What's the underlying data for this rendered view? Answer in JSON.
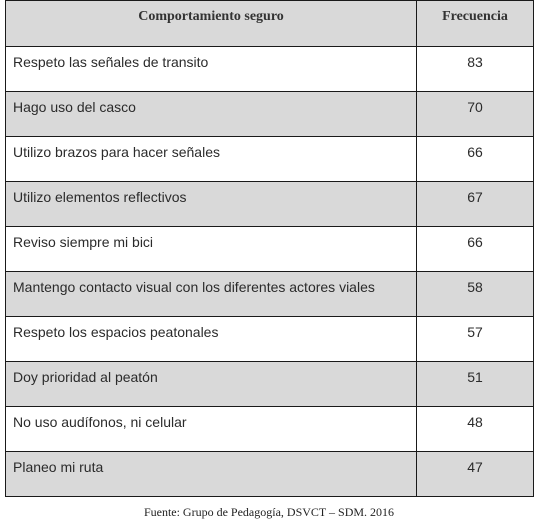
{
  "table": {
    "headers": [
      "Comportamiento seguro",
      "Frecuencia"
    ],
    "rows": [
      {
        "behavior": "Respeto las señales de transito",
        "frequency": "83"
      },
      {
        "behavior": "Hago uso del casco",
        "frequency": "70"
      },
      {
        "behavior": "Utilizo brazos para hacer señales",
        "frequency": "66"
      },
      {
        "behavior": "Utilizo elementos reflectivos",
        "frequency": "67"
      },
      {
        "behavior": "Reviso siempre mi bici",
        "frequency": "66"
      },
      {
        "behavior": "Mantengo contacto visual con los diferentes actores viales",
        "frequency": "58"
      },
      {
        "behavior": "Respeto los espacios peatonales",
        "frequency": "57"
      },
      {
        "behavior": "Doy prioridad al peatón",
        "frequency": "51"
      },
      {
        "behavior": "No uso audífonos, ni celular",
        "frequency": "48"
      },
      {
        "behavior": "Planeo mi ruta",
        "frequency": "47"
      }
    ]
  },
  "caption": "Fuente: Grupo de Pedagogía, DSVCT – SDM. 2016",
  "colors": {
    "header_bg": "#d9d9d9",
    "row_alt_bg": "#d9d9d9",
    "row_bg": "#ffffff",
    "border": "#1a1a1a"
  }
}
